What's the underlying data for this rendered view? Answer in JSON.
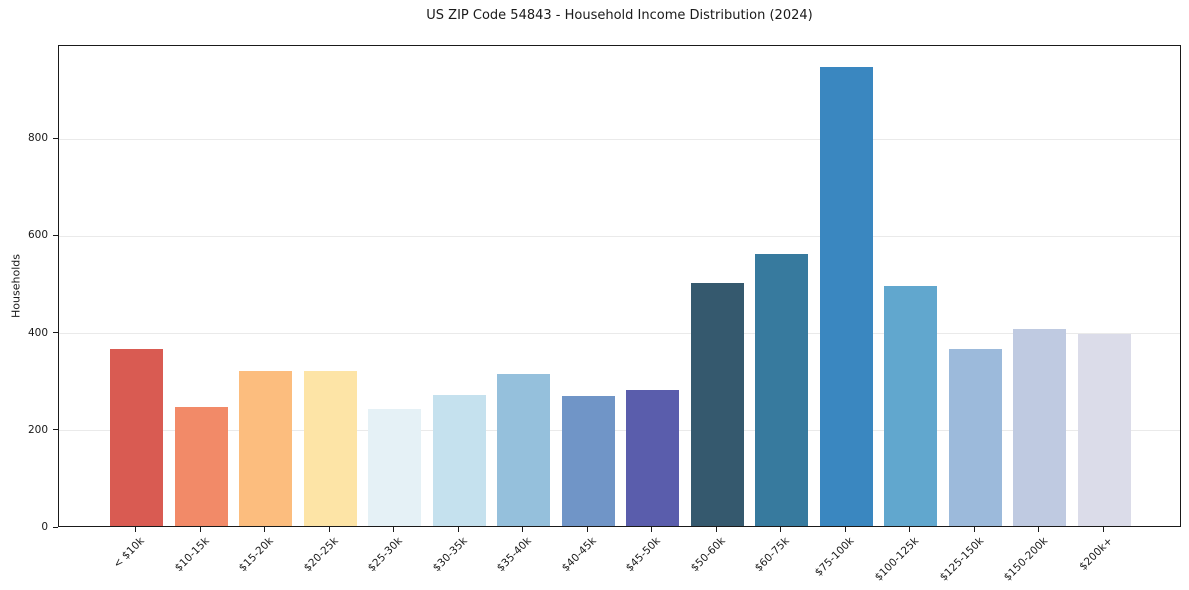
{
  "chart_data": {
    "type": "bar",
    "title": "US ZIP Code 54843 - Household Income Distribution (2024)",
    "xlabel": "",
    "ylabel": "Households",
    "categories": [
      "< $10k",
      "$10-15k",
      "$15-20k",
      "$20-25k",
      "$25-30k",
      "$30-35k",
      "$35-40k",
      "$40-45k",
      "$45-50k",
      "$50-60k",
      "$60-75k",
      "$75-100k",
      "$100-125k",
      "$125-150k",
      "$150-200k",
      "$200k+"
    ],
    "values": [
      365,
      244,
      320,
      320,
      240,
      270,
      313,
      267,
      280,
      500,
      560,
      945,
      494,
      365,
      405,
      395
    ],
    "bar_colors": [
      "#d95b52",
      "#f28a68",
      "#fcbd7e",
      "#fde4a6",
      "#e5f1f6",
      "#c5e1ee",
      "#95c0dc",
      "#7095c7",
      "#5a5dac",
      "#35596e",
      "#377a9e",
      "#3a87c0",
      "#61a7ce",
      "#9cbadb",
      "#bfcae1",
      "#dbdce9"
    ],
    "yticks": [
      0,
      200,
      400,
      600,
      800
    ],
    "ylim": [
      0,
      992
    ],
    "grid": "horizontal",
    "legend_position": "none",
    "x_tick_label_rotation": 45,
    "background_color": "#ffffff",
    "spine_color": "#1a1a1a",
    "gridline_color": "#eaeaea"
  }
}
